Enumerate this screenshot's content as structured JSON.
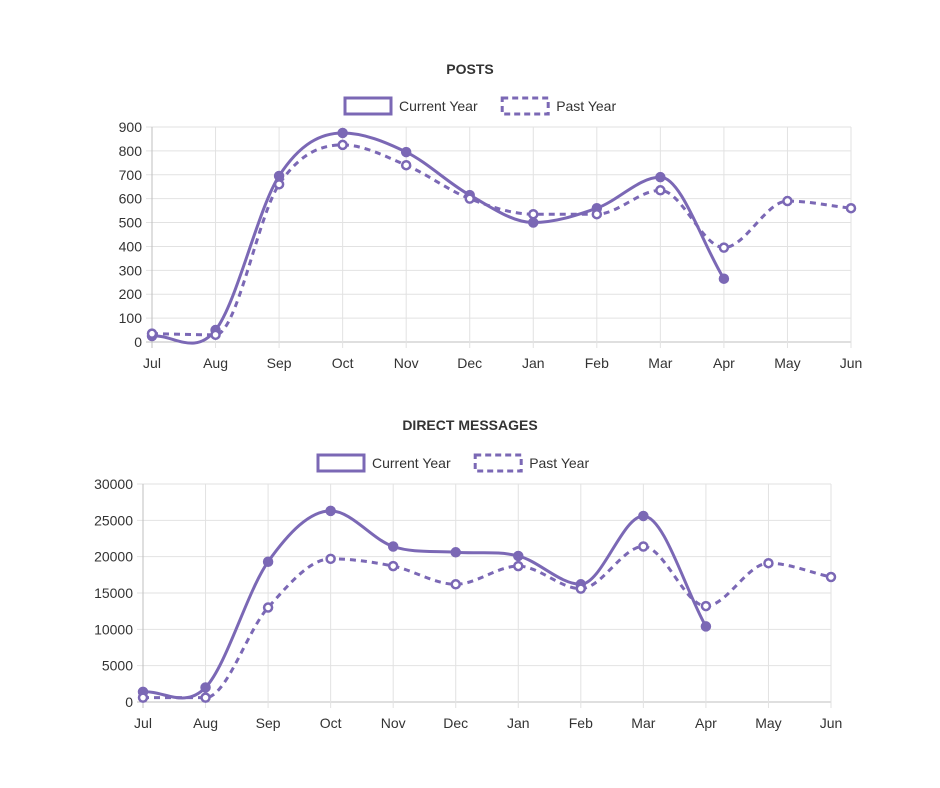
{
  "chart_data": [
    {
      "type": "line",
      "title": "POSTS",
      "categories": [
        "Jul",
        "Aug",
        "Sep",
        "Oct",
        "Nov",
        "Dec",
        "Jan",
        "Feb",
        "Mar",
        "Apr",
        "May",
        "Jun"
      ],
      "ylim": [
        0,
        900
      ],
      "yticks": [
        0,
        100,
        200,
        300,
        400,
        500,
        600,
        700,
        800,
        900
      ],
      "grid": true,
      "legend": "top-center",
      "series": [
        {
          "name": "Current Year",
          "style": "solid",
          "values": [
            25,
            50,
            695,
            875,
            795,
            615,
            500,
            560,
            690,
            265,
            null,
            null
          ]
        },
        {
          "name": "Past Year",
          "style": "dashed",
          "values": [
            35,
            30,
            660,
            825,
            740,
            600,
            535,
            535,
            635,
            395,
            590,
            560
          ]
        }
      ]
    },
    {
      "type": "line",
      "title": "DIRECT MESSAGES",
      "categories": [
        "Jul",
        "Aug",
        "Sep",
        "Oct",
        "Nov",
        "Dec",
        "Jan",
        "Feb",
        "Mar",
        "Apr",
        "May",
        "Jun"
      ],
      "ylim": [
        0,
        30000
      ],
      "yticks": [
        0,
        5000,
        10000,
        15000,
        20000,
        25000,
        30000
      ],
      "grid": true,
      "legend": "top-center",
      "series": [
        {
          "name": "Current Year",
          "style": "solid",
          "values": [
            1400,
            2000,
            19300,
            26300,
            21400,
            20600,
            20100,
            16200,
            25600,
            10400,
            null,
            null
          ]
        },
        {
          "name": "Past Year",
          "style": "dashed",
          "values": [
            600,
            600,
            13000,
            19700,
            18700,
            16200,
            18700,
            15600,
            21400,
            13200,
            19100,
            17200
          ]
        }
      ]
    }
  ],
  "colors": {
    "line": "#7b68b5",
    "grid": "#e2e2e2",
    "axis": "#bfbfbf",
    "text": "#333333"
  }
}
